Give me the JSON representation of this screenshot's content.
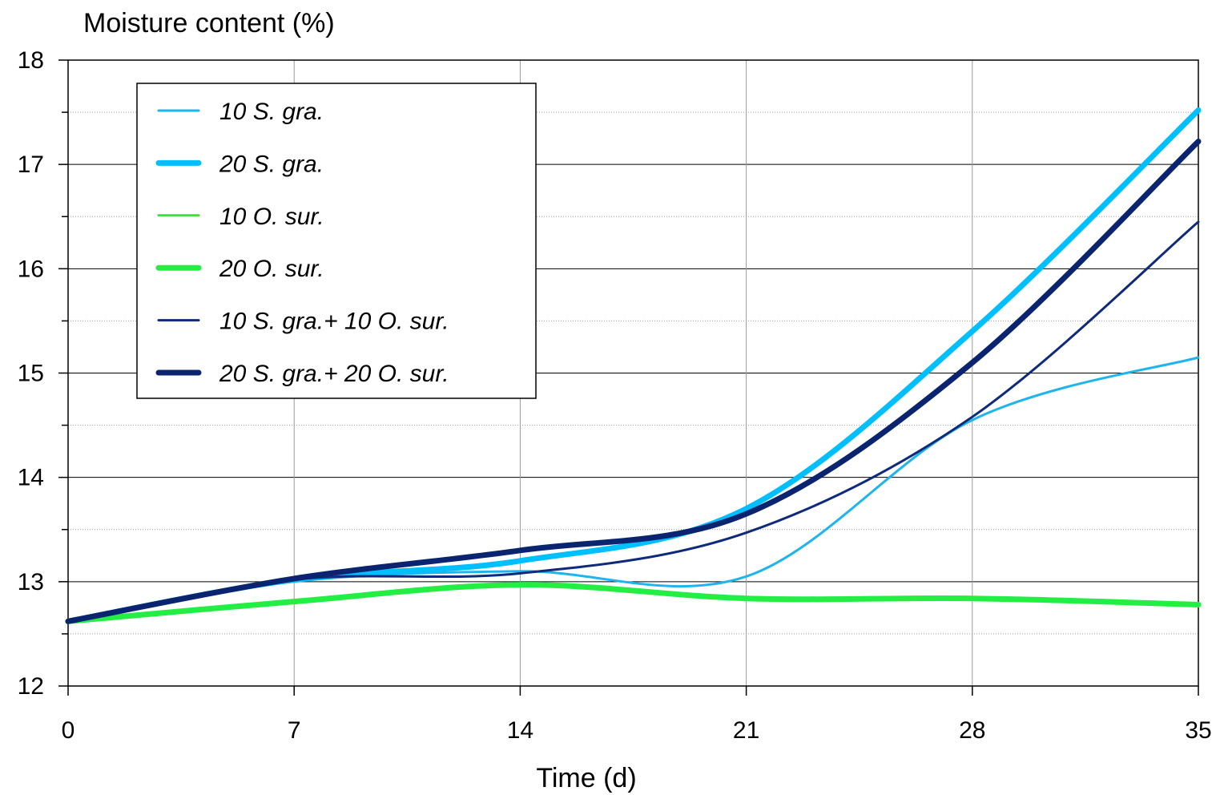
{
  "chart_data": {
    "type": "line",
    "ylabel": "Moisture content (%)",
    "xlabel": "Time (d)",
    "xlim": [
      0,
      35
    ],
    "ylim": [
      12,
      18
    ],
    "x_ticks": [
      0,
      7,
      14,
      21,
      28,
      35
    ],
    "y_ticks": [
      12,
      13,
      14,
      15,
      16,
      17,
      18
    ],
    "grid": {
      "vertical": true,
      "horizontal_major": true,
      "horizontal_minor": true
    },
    "legend_position": "top-left",
    "x": [
      0,
      7,
      14,
      21,
      28,
      35
    ],
    "series": [
      {
        "name": "10 S. gra.",
        "color": "#1EB4EC",
        "weight": "thin",
        "values": [
          12.62,
          13.0,
          13.1,
          13.05,
          14.55,
          15.15
        ]
      },
      {
        "name": "20 S. gra.",
        "color": "#00BFFF",
        "weight": "thick",
        "values": [
          12.62,
          13.02,
          13.2,
          13.7,
          15.4,
          17.52
        ]
      },
      {
        "name": "10 O. sur.",
        "color": "#33E633",
        "weight": "thin",
        "values": [
          12.62,
          12.81,
          12.97,
          12.84,
          12.84,
          12.78
        ]
      },
      {
        "name": "20 O. sur.",
        "color": "#22EE44",
        "weight": "thick",
        "values": [
          12.62,
          12.81,
          12.97,
          12.84,
          12.84,
          12.78
        ]
      },
      {
        "name": "10 S. gra.+  10 O. sur.",
        "color": "#0F2A7A",
        "weight": "thin",
        "values": [
          12.62,
          13.02,
          13.08,
          13.47,
          14.58,
          16.45
        ]
      },
      {
        "name": "20 S. gra.+  20 O. sur.",
        "color": "#0A2470",
        "weight": "thick",
        "values": [
          12.62,
          13.03,
          13.3,
          13.65,
          15.1,
          17.22
        ]
      }
    ]
  }
}
